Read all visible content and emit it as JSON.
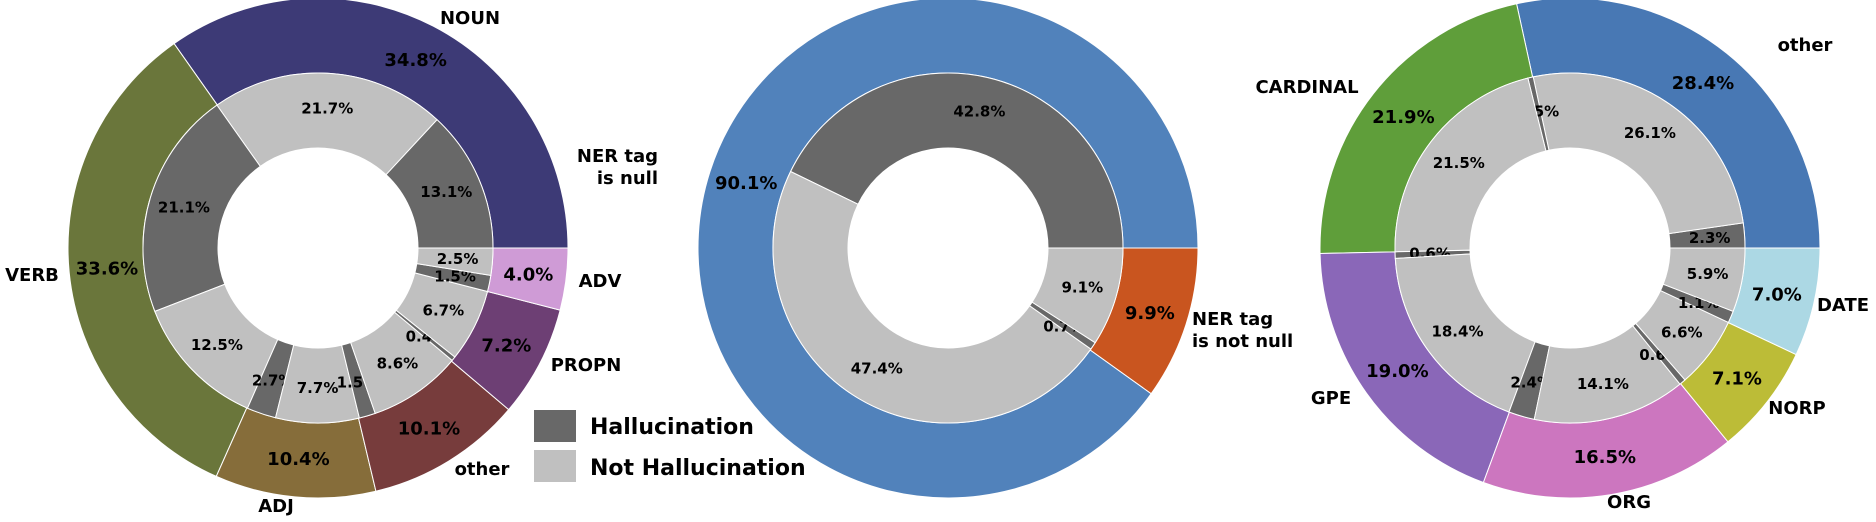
{
  "legend": {
    "hallucination_label": "Hallucination",
    "not_hallucination_label": "Not Hallucination",
    "hallucination_color": "#686868",
    "not_hallucination_color": "#c0c0c0"
  },
  "chart_data": [
    {
      "type": "pie",
      "subtype": "nested-donut",
      "outer": [
        {
          "name": "NOUN",
          "value": 34.8,
          "label": "34.8%",
          "color": "#3d3a76"
        },
        {
          "name": "VERB",
          "value": 33.6,
          "label": "33.6%",
          "color": "#6a763b"
        },
        {
          "name": "ADJ",
          "value": 10.4,
          "label": "10.4%",
          "color": "#866d3a"
        },
        {
          "name": "other",
          "value": 10.1,
          "label": "10.1%",
          "color": "#773c3c"
        },
        {
          "name": "PROPN",
          "value": 7.2,
          "label": "7.2%",
          "color": "#6d3f74"
        },
        {
          "name": "ADV",
          "value": 4.0,
          "label": "4.0%",
          "color": "#cf9bd6"
        }
      ],
      "inner": [
        {
          "value": 13.1,
          "label": "13.1%",
          "kind": "hallucination"
        },
        {
          "value": 21.7,
          "label": "21.7%",
          "kind": "not_hallucination"
        },
        {
          "value": 21.1,
          "label": "21.1%",
          "kind": "hallucination"
        },
        {
          "value": 12.5,
          "label": "12.5%",
          "kind": "not_hallucination"
        },
        {
          "value": 2.7,
          "label": "2.7%",
          "kind": "hallucination"
        },
        {
          "value": 7.7,
          "label": "7.7%",
          "kind": "not_hallucination"
        },
        {
          "value": 1.5,
          "label": "1.5%",
          "kind": "hallucination"
        },
        {
          "value": 8.6,
          "label": "8.6%",
          "kind": "not_hallucination"
        },
        {
          "value": 0.4,
          "label": "0.4%",
          "kind": "hallucination"
        },
        {
          "value": 6.7,
          "label": "6.7%",
          "kind": "not_hallucination"
        },
        {
          "value": 1.5,
          "label": "1.5%",
          "kind": "hallucination"
        },
        {
          "value": 2.5,
          "label": "2.5%",
          "kind": "not_hallucination"
        }
      ]
    },
    {
      "type": "pie",
      "subtype": "nested-donut",
      "outer": [
        {
          "name": "NER tag\nis null",
          "value": 90.1,
          "label": "90.1%",
          "color": "#5182bb"
        },
        {
          "name": "NER tag\nis not null",
          "value": 9.9,
          "label": "9.9%",
          "color": "#c9551f"
        }
      ],
      "inner": [
        {
          "value": 42.8,
          "label": "42.8%",
          "kind": "hallucination"
        },
        {
          "value": 47.4,
          "label": "47.4%",
          "kind": "not_hallucination"
        },
        {
          "value": 0.7,
          "label": "0.7%",
          "kind": "hallucination"
        },
        {
          "value": 9.1,
          "label": "9.1%",
          "kind": "not_hallucination"
        }
      ]
    },
    {
      "type": "pie",
      "subtype": "nested-donut",
      "outer": [
        {
          "name": "other",
          "value": 28.4,
          "label": "28.4%",
          "color": "#4878b4"
        },
        {
          "name": "CARDINAL",
          "value": 21.9,
          "label": "21.9%",
          "color": "#5f9e3a"
        },
        {
          "name": "GPE",
          "value": 19.0,
          "label": "19.0%",
          "color": "#8a67b8"
        },
        {
          "name": "ORG",
          "value": 16.5,
          "label": "16.5%",
          "color": "#cc76bf"
        },
        {
          "name": "NORP",
          "value": 7.1,
          "label": "7.1%",
          "color": "#bcbc37"
        },
        {
          "name": "DATE",
          "value": 7.0,
          "label": "7.0%",
          "color": "#acd8e4"
        }
      ],
      "inner": [
        {
          "value": 2.3,
          "label": "2.3%",
          "kind": "hallucination"
        },
        {
          "value": 26.1,
          "label": "26.1%",
          "kind": "not_hallucination"
        },
        {
          "value": 0.5,
          "label": "0.5%",
          "kind": "hallucination"
        },
        {
          "value": 21.5,
          "label": "21.5%",
          "kind": "not_hallucination"
        },
        {
          "value": 0.6,
          "label": "0.6%",
          "kind": "hallucination"
        },
        {
          "value": 18.4,
          "label": "18.4%",
          "kind": "not_hallucination"
        },
        {
          "value": 2.4,
          "label": "2.4%",
          "kind": "hallucination"
        },
        {
          "value": 14.1,
          "label": "14.1%",
          "kind": "not_hallucination"
        },
        {
          "value": 0.6,
          "label": "0.6%",
          "kind": "hallucination"
        },
        {
          "value": 6.6,
          "label": "6.6%",
          "kind": "not_hallucination"
        },
        {
          "value": 1.1,
          "label": "1.1%",
          "kind": "hallucination"
        },
        {
          "value": 5.9,
          "label": "5.9%",
          "kind": "not_hallucination"
        }
      ]
    }
  ]
}
